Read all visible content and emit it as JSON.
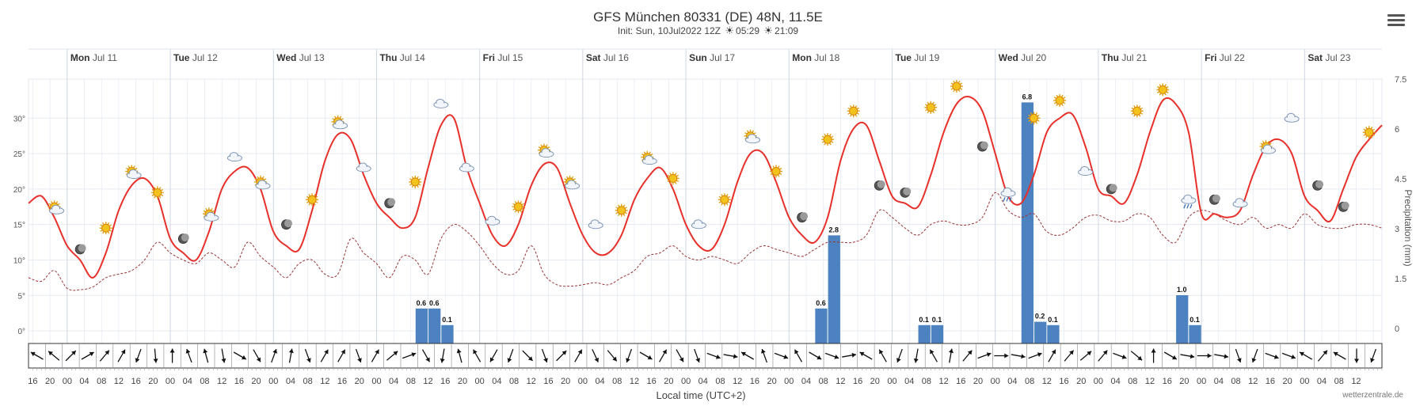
{
  "header": {
    "title": "GFS München 80331 (DE) 48N, 11.5E",
    "init": "Init: Sun, 10Jul2022 12Z",
    "sunrise": "05:29",
    "sunset": "21:09"
  },
  "credit": "wetterzentrale.de",
  "colors": {
    "temperature": "#e8302a",
    "dewpoint": "#9b3535",
    "precip": "#4b82bf",
    "grid": "#dfe6f1",
    "day_band": "#eef2f8"
  },
  "chart_data": {
    "type": "line",
    "title": "GFS München 80331 (DE) 48N, 11.5E",
    "xlabel": "Local time (UTC+2)",
    "ylabel_left": "",
    "ylabel_right": "Precipitation (mm)",
    "x_start_hour": 15,
    "x_end_hour": 330,
    "ylim_left": [
      -2,
      35.5
    ],
    "ylim_right": [
      -0.5,
      7.5
    ],
    "left_ticks": [
      "0°",
      "5°",
      "10°",
      "15°",
      "20°",
      "25°",
      "30°"
    ],
    "right_ticks": [
      "0",
      "1.5",
      "3",
      "4.5",
      "6",
      "7.5"
    ],
    "hour_tick_labels": [
      "16",
      "20",
      "00",
      "04",
      "08",
      "12",
      "16",
      "20",
      "00",
      "04",
      "08",
      "12",
      "16",
      "20",
      "00",
      "04",
      "08",
      "12",
      "16",
      "20",
      "00",
      "04",
      "08",
      "12",
      "16",
      "20",
      "00",
      "04",
      "08",
      "12",
      "16",
      "20",
      "00",
      "04",
      "08",
      "12",
      "16",
      "20",
      "00",
      "04",
      "08",
      "12",
      "16",
      "20",
      "00",
      "04",
      "08",
      "12",
      "16",
      "20",
      "00",
      "04",
      "08",
      "12",
      "16",
      "20",
      "00",
      "04",
      "08",
      "12",
      "16",
      "20",
      "00",
      "04",
      "08",
      "12",
      "16",
      "20",
      "00",
      "04",
      "08",
      "12",
      "16",
      "20",
      "00",
      "04",
      "08",
      "12"
    ],
    "days": [
      {
        "dow": "Mon",
        "date": "Jul 11"
      },
      {
        "dow": "Tue",
        "date": "Jul 12"
      },
      {
        "dow": "Wed",
        "date": "Jul 13"
      },
      {
        "dow": "Thu",
        "date": "Jul 14"
      },
      {
        "dow": "Fri",
        "date": "Jul 15"
      },
      {
        "dow": "Sat",
        "date": "Jul 16"
      },
      {
        "dow": "Sun",
        "date": "Jul 17"
      },
      {
        "dow": "Mon",
        "date": "Jul 18"
      },
      {
        "dow": "Tue",
        "date": "Jul 19"
      },
      {
        "dow": "Wed",
        "date": "Jul 20"
      },
      {
        "dow": "Thu",
        "date": "Jul 21"
      },
      {
        "dow": "Fri",
        "date": "Jul 22"
      },
      {
        "dow": "Sat",
        "date": "Jul 23"
      }
    ],
    "series": [
      {
        "name": "Temperature (°C)",
        "x": [
          15,
          18,
          21,
          24,
          27,
          30,
          33,
          36,
          39,
          42,
          45,
          48,
          51,
          54,
          57,
          60,
          63,
          66,
          69,
          72,
          75,
          78,
          81,
          84,
          87,
          90,
          93,
          96,
          99,
          102,
          105,
          108,
          111,
          114,
          117,
          120,
          123,
          126,
          129,
          132,
          135,
          138,
          141,
          144,
          147,
          150,
          153,
          156,
          159,
          162,
          165,
          168,
          171,
          174,
          177,
          180,
          183,
          186,
          189,
          192,
          195,
          198,
          201,
          204,
          207,
          210,
          213,
          216,
          219,
          222,
          225,
          228,
          231,
          234,
          237,
          240,
          243,
          246,
          249,
          252,
          255,
          258,
          261,
          264,
          267,
          270,
          273,
          276,
          279,
          282,
          285,
          288,
          291,
          294,
          297,
          300,
          303,
          306,
          309,
          312,
          315,
          318,
          321,
          324,
          327,
          330
        ],
        "values": [
          18,
          19,
          16,
          12,
          10,
          7.5,
          11,
          17,
          20.5,
          21.5,
          19,
          13,
          11,
          10,
          14,
          20,
          22.5,
          23,
          20,
          14,
          12,
          11.5,
          17,
          24,
          27.7,
          27,
          22,
          18,
          16,
          14.5,
          16,
          23,
          29,
          30,
          23,
          18,
          13.5,
          12,
          15,
          20.5,
          23.5,
          23,
          18,
          13.5,
          11,
          11,
          13.5,
          18.5,
          21.5,
          23,
          20,
          15,
          12,
          11.5,
          15,
          21,
          25,
          25,
          21,
          16,
          13.5,
          12.5,
          16,
          24,
          28.5,
          29,
          24,
          19,
          18,
          17.5,
          22,
          28,
          32,
          33,
          31,
          25,
          19,
          18,
          22,
          28,
          30,
          30.5,
          26,
          20,
          19,
          18,
          22,
          28,
          32.5,
          32,
          28,
          16.5,
          16.5,
          16,
          17,
          22,
          26,
          27,
          25,
          19,
          17,
          15.5,
          20,
          24.5,
          27,
          29
        ]
      },
      {
        "name": "Dew point (°C)",
        "x": [
          15,
          18,
          21,
          24,
          27,
          30,
          33,
          36,
          39,
          42,
          45,
          48,
          51,
          54,
          57,
          60,
          63,
          66,
          69,
          72,
          75,
          78,
          81,
          84,
          87,
          90,
          93,
          96,
          99,
          102,
          105,
          108,
          111,
          114,
          117,
          120,
          123,
          126,
          129,
          132,
          135,
          138,
          141,
          144,
          147,
          150,
          153,
          156,
          159,
          162,
          165,
          168,
          171,
          174,
          177,
          180,
          183,
          186,
          189,
          192,
          195,
          198,
          201,
          204,
          207,
          210,
          213,
          216,
          219,
          222,
          225,
          228,
          231,
          234,
          237,
          240,
          243,
          246,
          249,
          252,
          255,
          258,
          261,
          264,
          267,
          270,
          273,
          276,
          279,
          282,
          285,
          288,
          291,
          294,
          297,
          300,
          303,
          306,
          309,
          312,
          315,
          318,
          321,
          324,
          327,
          330
        ],
        "values": [
          7.5,
          7,
          8.5,
          6,
          5.8,
          6.2,
          7.5,
          8,
          8.5,
          10,
          12.5,
          11,
          10,
          9.5,
          11,
          10,
          9,
          12.5,
          10.5,
          9,
          7.5,
          9.5,
          10,
          8,
          8,
          13,
          11,
          9.5,
          7.5,
          10.5,
          10,
          8,
          13,
          15,
          14,
          12,
          9.5,
          8,
          8.5,
          12,
          8,
          6.5,
          6.3,
          6.5,
          6.8,
          6.5,
          7.5,
          8.5,
          10.5,
          11,
          12,
          10.5,
          10,
          10.5,
          10,
          9.5,
          11,
          12,
          11.5,
          11,
          10.5,
          11.5,
          12.5,
          12.5,
          12.5,
          13.5,
          17,
          16,
          14.5,
          13.5,
          15,
          15.5,
          15,
          15,
          16,
          19.5,
          17,
          16,
          16.5,
          14,
          13.5,
          14.5,
          16,
          16.3,
          15.5,
          15.5,
          16.5,
          16,
          13.5,
          12.5,
          16,
          17,
          16.5,
          15.5,
          15,
          16,
          14.5,
          15,
          14.5,
          16.5,
          15,
          14.5,
          14.5,
          15,
          15,
          14.5
        ]
      },
      {
        "name": "Precipitation (mm)",
        "x": [
          105,
          108,
          111,
          198,
          201,
          204,
          222,
          225,
          228,
          246,
          249,
          252,
          282,
          285
        ],
        "values": [
          0.6,
          0.6,
          0.1,
          0.6,
          2.8,
          0,
          0.1,
          0.1,
          0,
          6.8,
          0.2,
          0.1,
          1.0,
          0.1
        ],
        "labels": [
          "0.6",
          "0.6",
          "0.1",
          "0.6",
          "2.8",
          "",
          "0.1",
          "0.1",
          "",
          "6.8",
          "0.2",
          "0.1",
          "1.0",
          "0.1"
        ]
      }
    ],
    "weather_icons": [
      {
        "t": 21,
        "temp": 17.5,
        "icon": "sun-cloud"
      },
      {
        "t": 27,
        "temp": 11.5,
        "icon": "moon"
      },
      {
        "t": 33,
        "temp": 14.5,
        "icon": "sun"
      },
      {
        "t": 39,
        "temp": 22.5,
        "icon": "sun-cloud"
      },
      {
        "t": 45,
        "temp": 19.5,
        "icon": "sun"
      },
      {
        "t": 51,
        "temp": 13,
        "icon": "moon"
      },
      {
        "t": 57,
        "temp": 16.5,
        "icon": "sun-cloud"
      },
      {
        "t": 63,
        "temp": 24.5,
        "icon": "cloud"
      },
      {
        "t": 69,
        "temp": 21,
        "icon": "sun-cloud"
      },
      {
        "t": 75,
        "temp": 15,
        "icon": "moon"
      },
      {
        "t": 81,
        "temp": 18.5,
        "icon": "sun"
      },
      {
        "t": 87,
        "temp": 29.5,
        "icon": "sun-cloud"
      },
      {
        "t": 93,
        "temp": 23,
        "icon": "cloud"
      },
      {
        "t": 99,
        "temp": 18,
        "icon": "moon"
      },
      {
        "t": 105,
        "temp": 21,
        "icon": "sun"
      },
      {
        "t": 111,
        "temp": 32,
        "icon": "cloud"
      },
      {
        "t": 117,
        "temp": 23,
        "icon": "cloud"
      },
      {
        "t": 123,
        "temp": 15.5,
        "icon": "cloud"
      },
      {
        "t": 129,
        "temp": 17.5,
        "icon": "sun"
      },
      {
        "t": 135,
        "temp": 25.5,
        "icon": "sun-cloud"
      },
      {
        "t": 141,
        "temp": 21,
        "icon": "sun-cloud"
      },
      {
        "t": 147,
        "temp": 15,
        "icon": "cloud"
      },
      {
        "t": 153,
        "temp": 17,
        "icon": "sun"
      },
      {
        "t": 159,
        "temp": 24.5,
        "icon": "sun-cloud"
      },
      {
        "t": 165,
        "temp": 21.5,
        "icon": "sun"
      },
      {
        "t": 171,
        "temp": 15,
        "icon": "cloud"
      },
      {
        "t": 177,
        "temp": 18.5,
        "icon": "sun"
      },
      {
        "t": 183,
        "temp": 27.5,
        "icon": "sun-cloud"
      },
      {
        "t": 189,
        "temp": 22.5,
        "icon": "sun"
      },
      {
        "t": 195,
        "temp": 16,
        "icon": "moon"
      },
      {
        "t": 201,
        "temp": 27,
        "icon": "sun"
      },
      {
        "t": 207,
        "temp": 31,
        "icon": "sun"
      },
      {
        "t": 213,
        "temp": 20.5,
        "icon": "moon"
      },
      {
        "t": 219,
        "temp": 19.5,
        "icon": "moon"
      },
      {
        "t": 225,
        "temp": 31.5,
        "icon": "sun"
      },
      {
        "t": 231,
        "temp": 34.5,
        "icon": "sun"
      },
      {
        "t": 237,
        "temp": 26,
        "icon": "moon"
      },
      {
        "t": 243,
        "temp": 19.5,
        "icon": "rain"
      },
      {
        "t": 249,
        "temp": 30,
        "icon": "sun"
      },
      {
        "t": 255,
        "temp": 32.5,
        "icon": "sun"
      },
      {
        "t": 261,
        "temp": 22.5,
        "icon": "cloud"
      },
      {
        "t": 267,
        "temp": 20,
        "icon": "moon"
      },
      {
        "t": 273,
        "temp": 31,
        "icon": "sun"
      },
      {
        "t": 279,
        "temp": 34,
        "icon": "sun"
      },
      {
        "t": 285,
        "temp": 18.5,
        "icon": "rain"
      },
      {
        "t": 291,
        "temp": 18.5,
        "icon": "moon"
      },
      {
        "t": 297,
        "temp": 18,
        "icon": "cloud"
      },
      {
        "t": 303,
        "temp": 26,
        "icon": "sun-cloud"
      },
      {
        "t": 309,
        "temp": 30,
        "icon": "cloud"
      },
      {
        "t": 315,
        "temp": 20.5,
        "icon": "moon"
      },
      {
        "t": 321,
        "temp": 17.5,
        "icon": "moon"
      },
      {
        "t": 327,
        "temp": 28,
        "icon": "sun"
      }
    ],
    "wind_dirs_deg": [
      300,
      310,
      45,
      60,
      40,
      30,
      200,
      175,
      0,
      340,
      345,
      170,
      120,
      150,
      20,
      10,
      160,
      30,
      30,
      160,
      30,
      50,
      70,
      150,
      190,
      345,
      330,
      210,
      200,
      135,
      160,
      45,
      30,
      155,
      140,
      200,
      120,
      30,
      150,
      160,
      110,
      100,
      300,
      340,
      110,
      330,
      120,
      110,
      80,
      300,
      330,
      200,
      190,
      330,
      10,
      40,
      70,
      90,
      100,
      70,
      30,
      40,
      50,
      40,
      110,
      130,
      0,
      120,
      100,
      90,
      100,
      160,
      200,
      110,
      110,
      300,
      40,
      300,
      180,
      200
    ],
    "legend_position": "none"
  }
}
